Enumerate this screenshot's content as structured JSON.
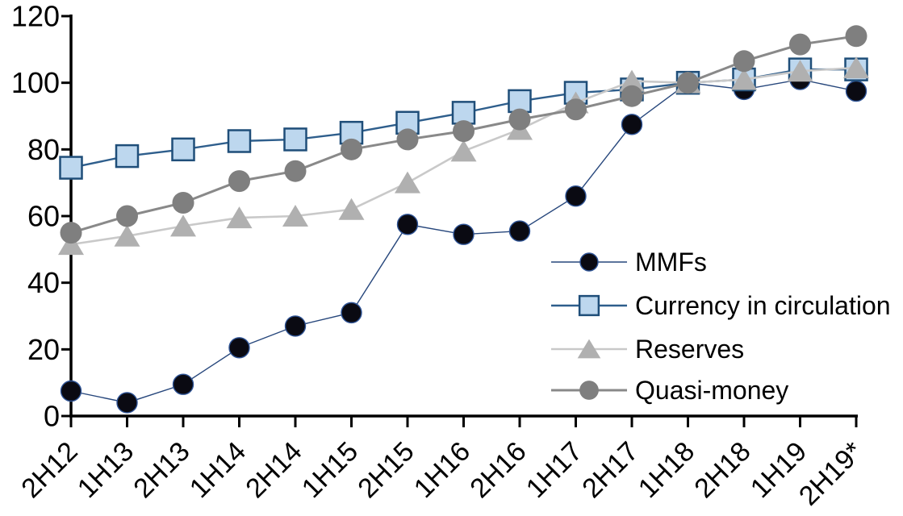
{
  "chart_data": {
    "type": "line",
    "title": "",
    "xlabel": "",
    "ylabel": "",
    "categories": [
      "2H12",
      "1H13",
      "2H13",
      "1H14",
      "2H14",
      "1H15",
      "2H15",
      "1H16",
      "2H16",
      "1H17",
      "2H17",
      "1H18",
      "2H18",
      "1H19",
      "2H19*"
    ],
    "series": [
      {
        "name": "MMFs",
        "marker": "circle",
        "marker_fill": "#0a0a12",
        "marker_border": "#2f5496",
        "line_color": "#27477c",
        "line_width": 1.4,
        "marker_size": 12.5,
        "values": [
          7.5,
          4,
          9.5,
          20.5,
          27,
          31,
          57.5,
          54.5,
          55.5,
          66,
          87.5,
          100,
          98,
          101,
          97.5
        ]
      },
      {
        "name": "Currency in circulation",
        "marker": "square",
        "marker_fill": "#bdd7ee",
        "marker_border": "#1f4e79",
        "line_color": "#2e5e8c",
        "line_width": 2.4,
        "marker_size": 13.5,
        "values": [
          74.5,
          78,
          80,
          82.5,
          83,
          85,
          88,
          91,
          94.5,
          97,
          98,
          100,
          101,
          104,
          104
        ]
      },
      {
        "name": "Reserves",
        "marker": "triangle",
        "marker_fill": "#b0b0b0",
        "marker_border": "none",
        "line_color": "#c9c9c9",
        "line_width": 2.6,
        "marker_size": 14,
        "values": [
          51.5,
          54,
          57,
          59.5,
          60,
          62,
          70,
          79.5,
          86,
          94,
          100.5,
          100,
          101,
          103.5,
          104.5
        ]
      },
      {
        "name": "Quasi-money",
        "marker": "circle",
        "marker_fill": "#7f7f7f",
        "marker_border": "none",
        "line_color": "#898989",
        "line_width": 3,
        "marker_size": 13.5,
        "values": [
          55,
          60,
          64,
          70.5,
          73.5,
          80,
          83,
          85.5,
          89,
          92,
          96,
          100,
          106.5,
          111.5,
          114
        ]
      }
    ],
    "ylim": [
      0,
      120
    ],
    "yticks": [
      0,
      20,
      40,
      60,
      80,
      100,
      120
    ],
    "grid": false,
    "axis_color": "#000000",
    "legend_position": "inside-right",
    "legend_labels": [
      "MMFs",
      "Currency in circulation",
      "Reserves",
      "Quasi-money"
    ]
  }
}
